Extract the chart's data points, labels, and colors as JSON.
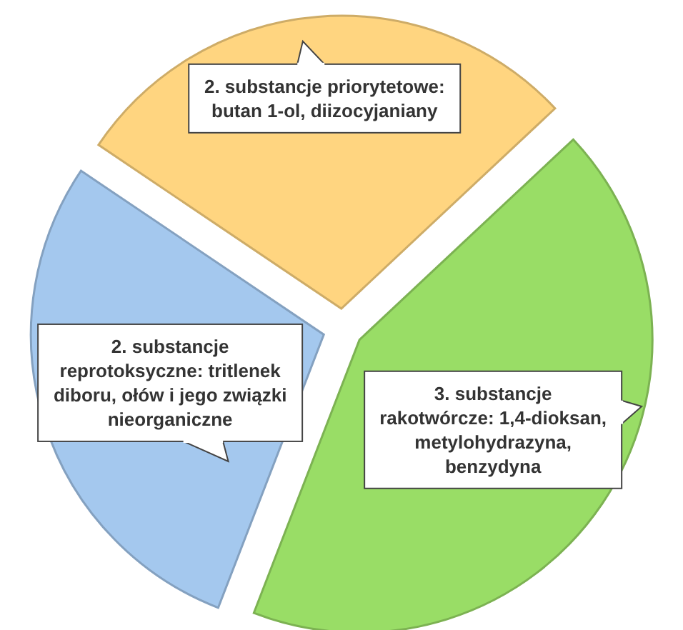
{
  "chart_data": {
    "type": "pie",
    "categories": [
      "2. substancje priorytetowe: butan 1-ol, diizocyjaniany",
      "3. substancje rakotwórcze: 1,4-dioksan, metylohydrazyna, benzydyna",
      "2. substancje reprotoksyczne: tritlenek diboru, ołów i jego związki nieorganiczne"
    ],
    "values": [
      2,
      3,
      2
    ],
    "colors": [
      "#ffd580",
      "#99dd66",
      "#a4c8ee"
    ]
  }
}
